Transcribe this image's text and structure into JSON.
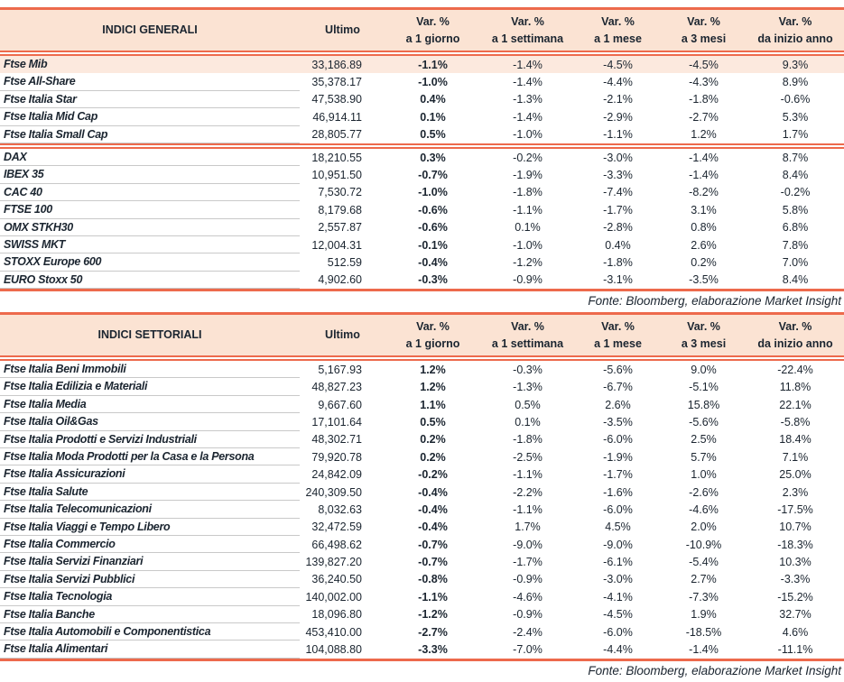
{
  "colors": {
    "accent": "#ED6A4C",
    "header_bg": "#FBE3D3",
    "highlight_bg": "#FCE9DE",
    "text": "#1B2530"
  },
  "var_label": "Var. %",
  "tables": [
    {
      "title": "INDICI GENERALI",
      "ultimo_label": "Ultimo",
      "var_columns": [
        "a 1 giorno",
        "a 1 settimana",
        "a 1 mese",
        "a 3 mesi",
        "da inizio anno"
      ],
      "fonte": "Fonte: Bloomberg, elaborazione Market Insight",
      "groups": [
        {
          "rows": [
            {
              "name": "Ftse Mib",
              "ultimo": "33,186.89",
              "d1": "-1.1%",
              "w1": "-1.4%",
              "m1": "-4.5%",
              "m3": "-4.5%",
              "ytd": "9.3%",
              "highlight": true
            },
            {
              "name": "Ftse All-Share",
              "ultimo": "35,378.17",
              "d1": "-1.0%",
              "w1": "-1.4%",
              "m1": "-4.4%",
              "m3": "-4.3%",
              "ytd": "8.9%",
              "highlight": false
            },
            {
              "name": "Ftse Italia Star",
              "ultimo": "47,538.90",
              "d1": "0.4%",
              "w1": "-1.3%",
              "m1": "-2.1%",
              "m3": "-1.8%",
              "ytd": "-0.6%",
              "highlight": false
            },
            {
              "name": "Ftse Italia Mid Cap",
              "ultimo": "46,914.11",
              "d1": "0.1%",
              "w1": "-1.4%",
              "m1": "-2.9%",
              "m3": "-2.7%",
              "ytd": "5.3%",
              "highlight": false
            },
            {
              "name": "Ftse Italia Small Cap",
              "ultimo": "28,805.77",
              "d1": "0.5%",
              "w1": "-1.0%",
              "m1": "-1.1%",
              "m3": "1.2%",
              "ytd": "1.7%",
              "highlight": false
            }
          ]
        },
        {
          "rows": [
            {
              "name": "DAX",
              "ultimo": "18,210.55",
              "d1": "0.3%",
              "w1": "-0.2%",
              "m1": "-3.0%",
              "m3": "-1.4%",
              "ytd": "8.7%",
              "highlight": false
            },
            {
              "name": "IBEX 35",
              "ultimo": "10,951.50",
              "d1": "-0.7%",
              "w1": "-1.9%",
              "m1": "-3.3%",
              "m3": "-1.4%",
              "ytd": "8.4%",
              "highlight": false
            },
            {
              "name": "CAC 40",
              "ultimo": "7,530.72",
              "d1": "-1.0%",
              "w1": "-1.8%",
              "m1": "-7.4%",
              "m3": "-8.2%",
              "ytd": "-0.2%",
              "highlight": false
            },
            {
              "name": "FTSE 100",
              "ultimo": "8,179.68",
              "d1": "-0.6%",
              "w1": "-1.1%",
              "m1": "-1.7%",
              "m3": "3.1%",
              "ytd": "5.8%",
              "highlight": false
            },
            {
              "name": "OMX STKH30",
              "ultimo": "2,557.87",
              "d1": "-0.6%",
              "w1": "0.1%",
              "m1": "-2.8%",
              "m3": "0.8%",
              "ytd": "6.8%",
              "highlight": false
            },
            {
              "name": "SWISS MKT",
              "ultimo": "12,004.31",
              "d1": "-0.1%",
              "w1": "-1.0%",
              "m1": "0.4%",
              "m3": "2.6%",
              "ytd": "7.8%",
              "highlight": false
            },
            {
              "name": "STOXX Europe 600",
              "ultimo": "512.59",
              "d1": "-0.4%",
              "w1": "-1.2%",
              "m1": "-1.8%",
              "m3": "0.2%",
              "ytd": "7.0%",
              "highlight": false
            },
            {
              "name": "EURO Stoxx 50",
              "ultimo": "4,902.60",
              "d1": "-0.3%",
              "w1": "-0.9%",
              "m1": "-3.1%",
              "m3": "-3.5%",
              "ytd": "8.4%",
              "highlight": false
            }
          ]
        }
      ]
    },
    {
      "title": "INDICI SETTORIALI",
      "ultimo_label": "Ultimo",
      "var_columns": [
        "a 1 giorno",
        "a 1 settimana",
        "a 1 mese",
        "a 3 mesi",
        "da inizio anno"
      ],
      "fonte": "Fonte: Bloomberg, elaborazione Market Insight",
      "groups": [
        {
          "rows": [
            {
              "name": "Ftse Italia Beni Immobili",
              "ultimo": "5,167.93",
              "d1": "1.2%",
              "w1": "-0.3%",
              "m1": "-5.6%",
              "m3": "9.0%",
              "ytd": "-22.4%",
              "highlight": false
            },
            {
              "name": "Ftse Italia Edilizia e Materiali",
              "ultimo": "48,827.23",
              "d1": "1.2%",
              "w1": "-1.3%",
              "m1": "-6.7%",
              "m3": "-5.1%",
              "ytd": "11.8%",
              "highlight": false
            },
            {
              "name": "Ftse Italia Media",
              "ultimo": "9,667.60",
              "d1": "1.1%",
              "w1": "0.5%",
              "m1": "2.6%",
              "m3": "15.8%",
              "ytd": "22.1%",
              "highlight": false
            },
            {
              "name": "Ftse Italia Oil&Gas",
              "ultimo": "17,101.64",
              "d1": "0.5%",
              "w1": "0.1%",
              "m1": "-3.5%",
              "m3": "-5.6%",
              "ytd": "-5.8%",
              "highlight": false
            },
            {
              "name": "Ftse Italia Prodotti e Servizi Industriali",
              "ultimo": "48,302.71",
              "d1": "0.2%",
              "w1": "-1.8%",
              "m1": "-6.0%",
              "m3": "2.5%",
              "ytd": "18.4%",
              "highlight": false
            },
            {
              "name": "Ftse Italia Moda Prodotti per la Casa e la Persona",
              "ultimo": "79,920.78",
              "d1": "0.2%",
              "w1": "-2.5%",
              "m1": "-1.9%",
              "m3": "5.7%",
              "ytd": "7.1%",
              "highlight": false
            },
            {
              "name": "Ftse Italia Assicurazioni",
              "ultimo": "24,842.09",
              "d1": "-0.2%",
              "w1": "-1.1%",
              "m1": "-1.7%",
              "m3": "1.0%",
              "ytd": "25.0%",
              "highlight": false
            },
            {
              "name": "Ftse Italia Salute",
              "ultimo": "240,309.50",
              "d1": "-0.4%",
              "w1": "-2.2%",
              "m1": "-1.6%",
              "m3": "-2.6%",
              "ytd": "2.3%",
              "highlight": false
            },
            {
              "name": "Ftse Italia Telecomunicazioni",
              "ultimo": "8,032.63",
              "d1": "-0.4%",
              "w1": "-1.1%",
              "m1": "-6.0%",
              "m3": "-4.6%",
              "ytd": "-17.5%",
              "highlight": false
            },
            {
              "name": "Ftse Italia Viaggi e Tempo Libero",
              "ultimo": "32,472.59",
              "d1": "-0.4%",
              "w1": "1.7%",
              "m1": "4.5%",
              "m3": "2.0%",
              "ytd": "10.7%",
              "highlight": false
            },
            {
              "name": "Ftse Italia Commercio",
              "ultimo": "66,498.62",
              "d1": "-0.7%",
              "w1": "-9.0%",
              "m1": "-9.0%",
              "m3": "-10.9%",
              "ytd": "-18.3%",
              "highlight": false
            },
            {
              "name": "Ftse Italia Servizi Finanziari",
              "ultimo": "139,827.20",
              "d1": "-0.7%",
              "w1": "-1.7%",
              "m1": "-6.1%",
              "m3": "-5.4%",
              "ytd": "10.3%",
              "highlight": false
            },
            {
              "name": "Ftse Italia Servizi Pubblici",
              "ultimo": "36,240.50",
              "d1": "-0.8%",
              "w1": "-0.9%",
              "m1": "-3.0%",
              "m3": "2.7%",
              "ytd": "-3.3%",
              "highlight": false
            },
            {
              "name": "Ftse Italia Tecnologia",
              "ultimo": "140,002.00",
              "d1": "-1.1%",
              "w1": "-4.6%",
              "m1": "-4.1%",
              "m3": "-7.3%",
              "ytd": "-15.2%",
              "highlight": false
            },
            {
              "name": "Ftse Italia Banche",
              "ultimo": "18,096.80",
              "d1": "-1.2%",
              "w1": "-0.9%",
              "m1": "-4.5%",
              "m3": "1.9%",
              "ytd": "32.7%",
              "highlight": false
            },
            {
              "name": "Ftse Italia Automobili e Componentistica",
              "ultimo": "453,410.00",
              "d1": "-2.7%",
              "w1": "-2.4%",
              "m1": "-6.0%",
              "m3": "-18.5%",
              "ytd": "4.6%",
              "highlight": false
            },
            {
              "name": "Ftse Italia Alimentari",
              "ultimo": "104,088.80",
              "d1": "-3.3%",
              "w1": "-7.0%",
              "m1": "-4.4%",
              "m3": "-1.4%",
              "ytd": "-11.1%",
              "highlight": false
            }
          ]
        }
      ]
    }
  ]
}
